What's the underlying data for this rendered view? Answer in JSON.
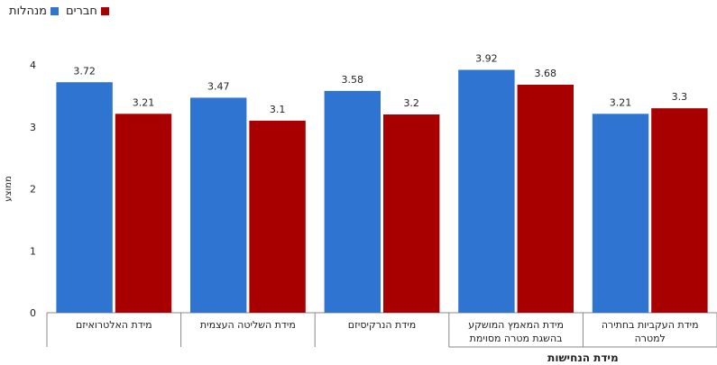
{
  "colors": {
    "series1": "#2f74d0",
    "series2": "#a80000",
    "axis": "#888888",
    "text": "#222222"
  },
  "legend": [
    {
      "label": "חברים",
      "color": "#a80000"
    },
    {
      "label": "מנהלות",
      "color": "#2f74d0"
    }
  ],
  "chart_data": {
    "type": "bar",
    "title": "",
    "ylabel": "ממוצע",
    "xlabel": "מידת הנחישות",
    "ylim": [
      0,
      4
    ],
    "yticks": [
      0,
      1,
      2,
      3,
      4
    ],
    "grid": false,
    "legend_position": "top-left",
    "categories": [
      [
        "מידת האלטרואיזם"
      ],
      [
        "מידת השליטה העצמית"
      ],
      [
        "מידת הנרקיסיזם"
      ],
      [
        "מידת המאמץ המושקע",
        "בהשגת מטרה מסוימת"
      ],
      [
        "מידת העקביות בחתירה",
        "למטרה"
      ]
    ],
    "grouped_categories": [
      3,
      4
    ],
    "series": [
      {
        "name": "מנהלות",
        "values": [
          3.72,
          3.47,
          3.58,
          3.92,
          3.21
        ]
      },
      {
        "name": "חברים",
        "values": [
          3.21,
          3.1,
          3.2,
          3.68,
          3.3
        ]
      }
    ]
  }
}
